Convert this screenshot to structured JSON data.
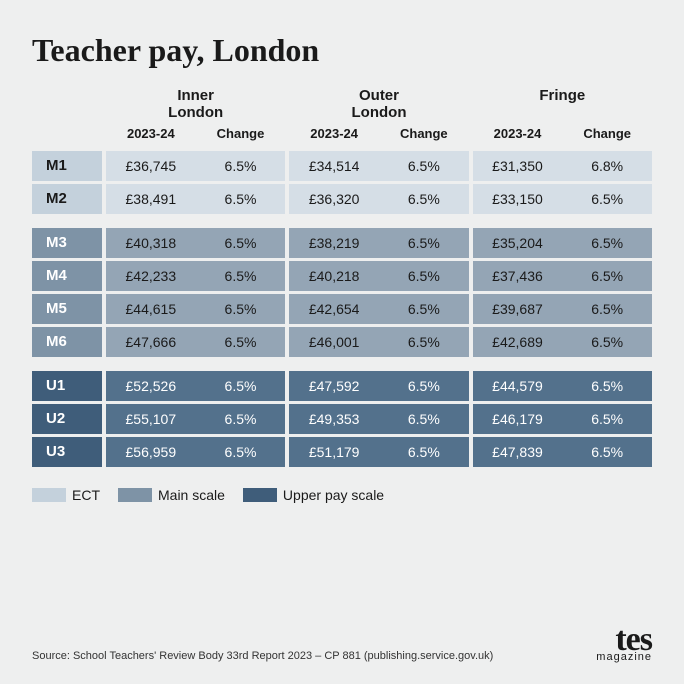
{
  "title": "Teacher pay, London",
  "columns": {
    "groups": [
      "Inner London",
      "Outer London",
      "Fringe"
    ],
    "sub": [
      "2023-24",
      "Change"
    ]
  },
  "colors": {
    "page_bg": "#eeefef",
    "ect_label": "#c4d1dc",
    "ect_cell": "#d5dee6",
    "main_label": "#7e93a6",
    "main_cell": "#94a5b5",
    "upper_label": "#3f5d7a",
    "upper_cell": "#53718c",
    "text_dark": "#1a1a1a",
    "text_light": "#ffffff"
  },
  "sections": [
    {
      "tier": "ect",
      "rows": [
        {
          "label": "M1",
          "inner": [
            "£36,745",
            "6.5%"
          ],
          "outer": [
            "£34,514",
            "6.5%"
          ],
          "fringe": [
            "£31,350",
            "6.8%"
          ]
        },
        {
          "label": "M2",
          "inner": [
            "£38,491",
            "6.5%"
          ],
          "outer": [
            "£36,320",
            "6.5%"
          ],
          "fringe": [
            "£33,150",
            "6.5%"
          ]
        }
      ]
    },
    {
      "tier": "main",
      "rows": [
        {
          "label": "M3",
          "inner": [
            "£40,318",
            "6.5%"
          ],
          "outer": [
            "£38,219",
            "6.5%"
          ],
          "fringe": [
            "£35,204",
            "6.5%"
          ]
        },
        {
          "label": "M4",
          "inner": [
            "£42,233",
            "6.5%"
          ],
          "outer": [
            "£40,218",
            "6.5%"
          ],
          "fringe": [
            "£37,436",
            "6.5%"
          ]
        },
        {
          "label": "M5",
          "inner": [
            "£44,615",
            "6.5%"
          ],
          "outer": [
            "£42,654",
            "6.5%"
          ],
          "fringe": [
            "£39,687",
            "6.5%"
          ]
        },
        {
          "label": "M6",
          "inner": [
            "£47,666",
            "6.5%"
          ],
          "outer": [
            "£46,001",
            "6.5%"
          ],
          "fringe": [
            "£42,689",
            "6.5%"
          ]
        }
      ]
    },
    {
      "tier": "upper",
      "rows": [
        {
          "label": "U1",
          "inner": [
            "£52,526",
            "6.5%"
          ],
          "outer": [
            "£47,592",
            "6.5%"
          ],
          "fringe": [
            "£44,579",
            "6.5%"
          ]
        },
        {
          "label": "U2",
          "inner": [
            "£55,107",
            "6.5%"
          ],
          "outer": [
            "£49,353",
            "6.5%"
          ],
          "fringe": [
            "£46,179",
            "6.5%"
          ]
        },
        {
          "label": "U3",
          "inner": [
            "£56,959",
            "6.5%"
          ],
          "outer": [
            "£51,179",
            "6.5%"
          ],
          "fringe": [
            "£47,839",
            "6.5%"
          ]
        }
      ]
    }
  ],
  "legend": [
    {
      "swatch": "sw-ect",
      "label": "ECT"
    },
    {
      "swatch": "sw-main",
      "label": "Main scale"
    },
    {
      "swatch": "sw-upper",
      "label": "Upper pay scale"
    }
  ],
  "source": "Source: School Teachers' Review Body 33rd Report 2023 – CP 881 (publishing.service.gov.uk)",
  "brand": {
    "name": "tes",
    "sub": "magazine"
  }
}
